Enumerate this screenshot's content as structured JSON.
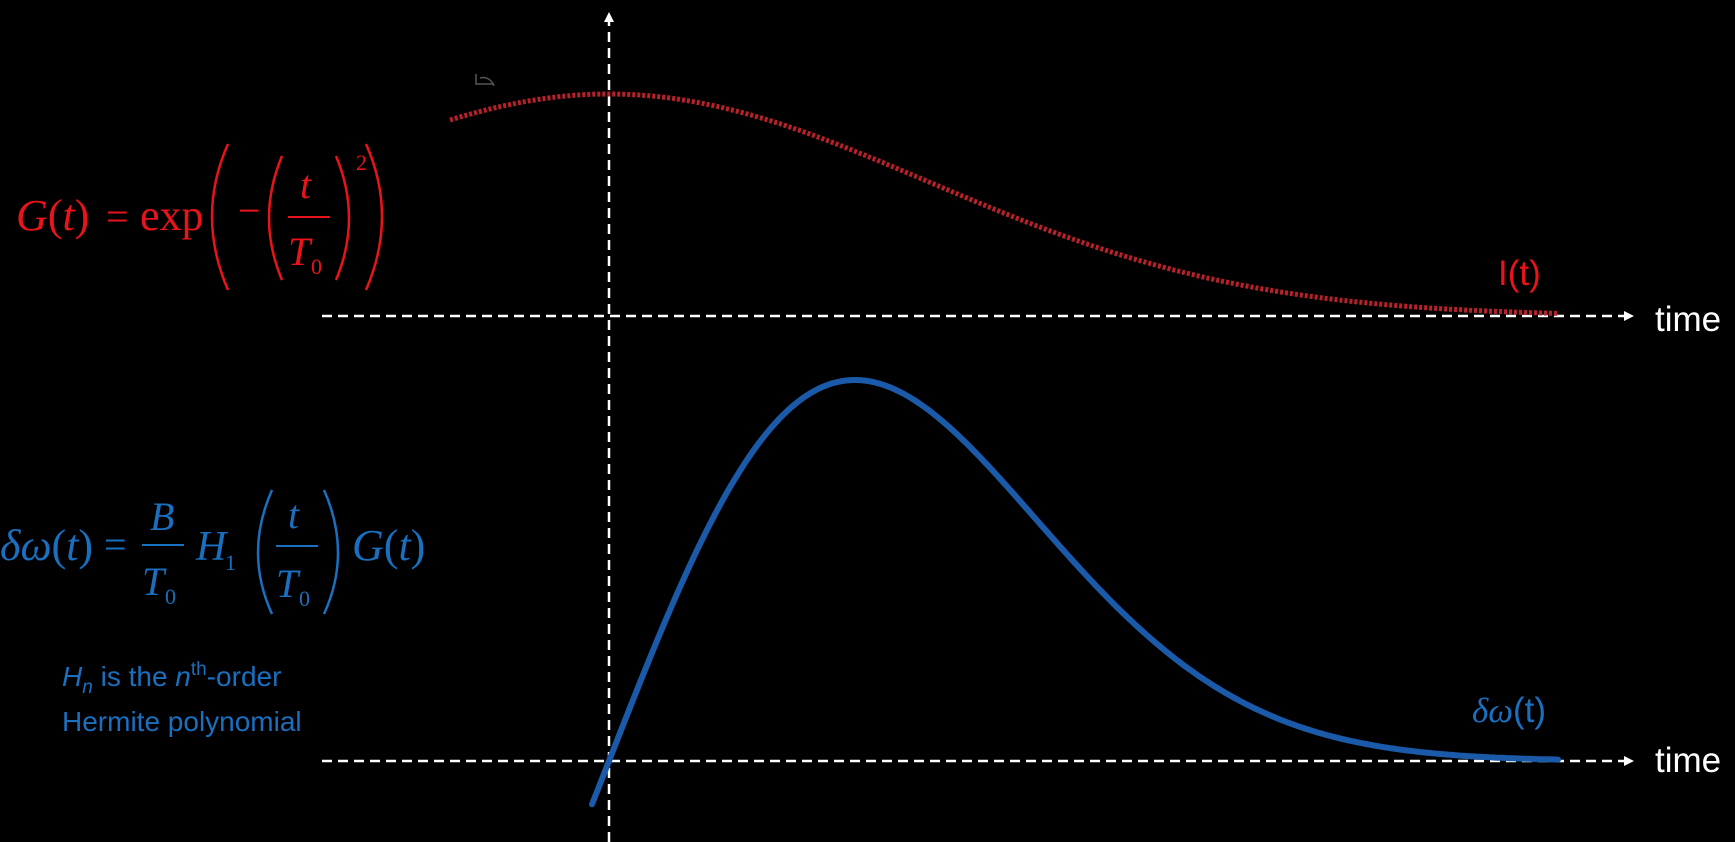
{
  "colors": {
    "background": "#000000",
    "axis": "#ffffff",
    "gaussian": "#b8202a",
    "gaussian_text": "#e8141a",
    "chirp": "#1a5aa8",
    "chirp_text": "#1a6fbf"
  },
  "axes": {
    "top_time_label": "time",
    "bottom_time_label": "time"
  },
  "curves": {
    "intensity_label": "I(t)",
    "chirp_label_symbol": "δω",
    "chirp_label_arg": "(t)"
  },
  "equations": {
    "gaussian": {
      "lhs_func": "G",
      "lhs_var": "t",
      "equals": "=",
      "exp": "exp",
      "minus": "−",
      "num": "t",
      "den": "T",
      "den_sub": "0",
      "power": "2"
    },
    "chirp": {
      "lhs_func": "δω",
      "lhs_var": "t",
      "equals": "=",
      "coef_num": "B",
      "coef_den": "T",
      "coef_den_sub": "0",
      "hermite": "H",
      "hermite_sub": "1",
      "arg_num": "t",
      "arg_den": "T",
      "arg_den_sub": "0",
      "g": "G",
      "g_var": "t"
    }
  },
  "note": {
    "h": "H",
    "h_sub": "n",
    "text1": " is the ",
    "n": "n",
    "th": "th",
    "text2": "-order",
    "line2": "Hermite polynomial"
  }
}
